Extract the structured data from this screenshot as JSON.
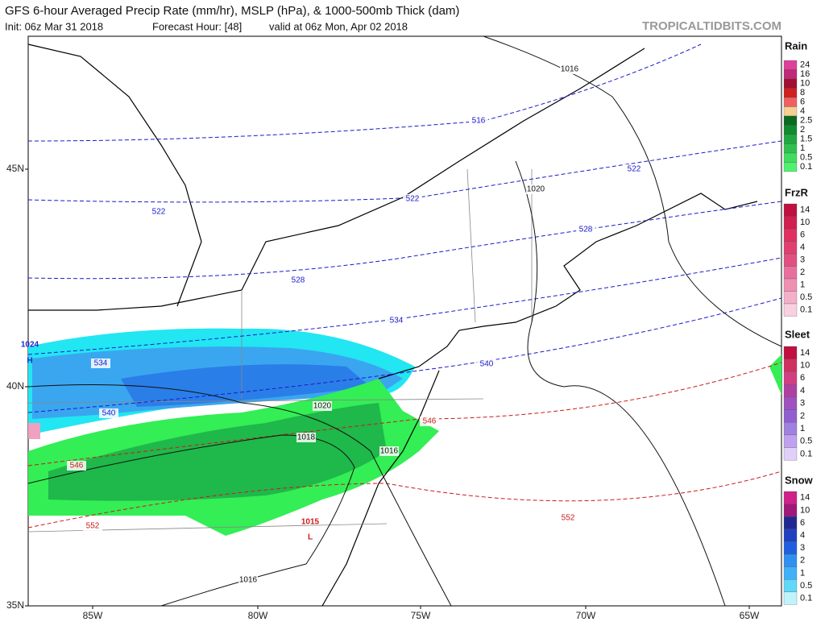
{
  "header": {
    "title": "GFS 6-hour Averaged Precip Rate (mm/hr), MSLP (hPa), & 1000-500mb Thick (dam)",
    "subtitle": [
      "Init: 06z Mar 31 2018",
      "Forecast Hour: [48]",
      "valid at 06z Mon, Apr 02 2018"
    ],
    "watermark": "TROPICALTIDBITS.COM"
  },
  "legend": [
    {
      "title": "Rain",
      "labels": [
        "24",
        "16",
        "10",
        "8",
        "6",
        "4",
        "2.5",
        "2",
        "1.5",
        "1",
        "0.5",
        "0.1"
      ]
    },
    {
      "title": "FrzR",
      "labels": [
        "14",
        "10",
        "6",
        "4",
        "3",
        "2",
        "1",
        "0.5",
        "0.1"
      ]
    },
    {
      "title": "Sleet",
      "labels": [
        "14",
        "10",
        "6",
        "4",
        "3",
        "2",
        "1",
        "0.5",
        "0.1"
      ]
    },
    {
      "title": "Snow",
      "labels": [
        "14",
        "10",
        "6",
        "4",
        "3",
        "2",
        "1",
        "0.5",
        "0.1"
      ]
    }
  ],
  "axes": {
    "longitudes": [
      "85W",
      "80W",
      "75W",
      "70W",
      "65W"
    ],
    "latitudes": [
      "45N",
      "40N",
      "35N"
    ]
  },
  "map_labels": [
    "1016",
    "516",
    "522",
    "522",
    "522",
    "1020",
    "528",
    "528",
    "534",
    "534",
    "540",
    "540",
    "546",
    "546",
    "552",
    "552",
    "1020",
    "1018",
    "1016",
    "1024",
    "H",
    "1015",
    "L",
    "1016"
  ]
}
